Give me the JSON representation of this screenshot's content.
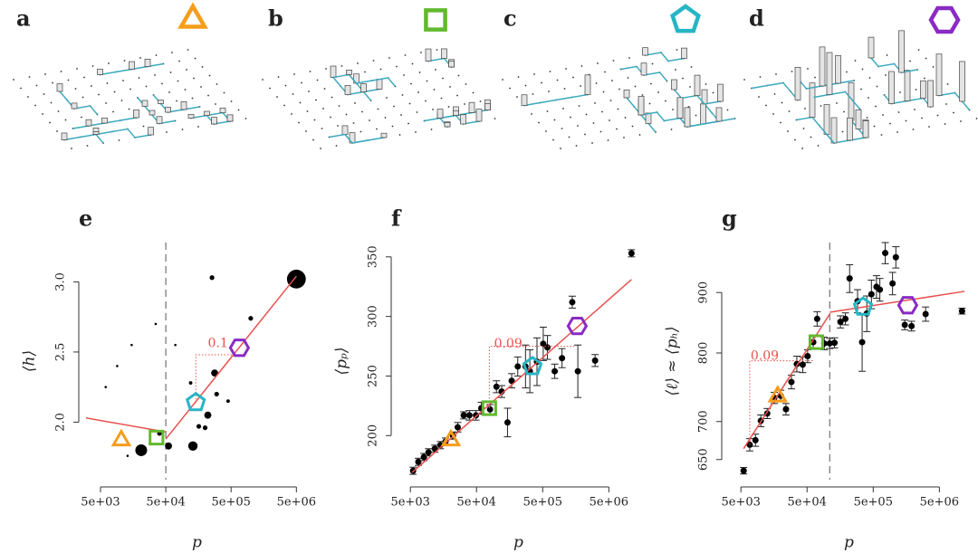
{
  "panels": [
    {
      "label": "a",
      "shape": "triangle",
      "color": "#f59d1c"
    },
    {
      "label": "b",
      "shape": "square",
      "color": "#62b92e"
    },
    {
      "label": "c",
      "shape": "pentagon",
      "color": "#27b5c4"
    },
    {
      "label": "d",
      "shape": "hexagon",
      "color": "#8a2bc4"
    }
  ],
  "chart_data": [
    {
      "type": "scatter",
      "title": "e",
      "xlabel": "p",
      "ylabel": "⟨h⟩",
      "xscale": "log",
      "yscale": "linear",
      "xlim": [
        3000,
        7500000
      ],
      "ylim": [
        1.59,
        3.28
      ],
      "xticks": [
        {
          "value": 5000,
          "label": "5e+03"
        },
        {
          "value": 50000,
          "label": "5e+04"
        },
        {
          "value": 500000,
          "label": "5e+05"
        },
        {
          "value": 5000000,
          "label": "5e+06"
        }
      ],
      "yticks": [
        {
          "value": 2,
          "label": "2.0"
        },
        {
          "value": 2.5,
          "label": "2.5"
        },
        {
          "value": 3,
          "label": "3.0"
        }
      ],
      "color": "#000000",
      "x": [
        21000,
        55000,
        130000,
        40000,
        255000,
        5000000,
        280000,
        220000,
        160000,
        200000,
        1000000,
        120000,
        70000,
        9000,
        15000,
        6000,
        35000,
        13000,
        300000,
        450000
      ],
      "y": [
        1.8,
        1.83,
        1.83,
        1.92,
        3.03,
        3.02,
        2.35,
        2.05,
        1.97,
        1.96,
        2.74,
        2.28,
        2.55,
        2.4,
        2.55,
        2.25,
        2.7,
        1.76,
        2.2,
        2.15
      ],
      "sizes": [
        5,
        3,
        4,
        2,
        2,
        8,
        3,
        3,
        2,
        2,
        2,
        1.5,
        1,
        1,
        1,
        1,
        1,
        1,
        2,
        1.5
      ],
      "fit": {
        "color": "#e8514f",
        "segments": [
          {
            "x": [
              3000,
              50000
            ],
            "y": [
              2.03,
              1.93
            ]
          },
          {
            "x": [
              50000,
              5000000
            ],
            "y": [
              1.88,
              3.04
            ]
          }
        ]
      },
      "vline": 50000,
      "annotation": {
        "text": "0.1",
        "x": 220000,
        "y": 2.56,
        "bracket": {
          "x": [
            144000,
            670000
          ],
          "y": [
            2.14,
            2.48
          ]
        }
      },
      "markers": {
        "x": [
          10400,
          36000,
          144000,
          670000
        ],
        "y": [
          1.87,
          1.89,
          2.14,
          2.53
        ]
      }
    },
    {
      "type": "scatter",
      "title": "f",
      "xlabel": "p",
      "ylabel": "⟨pₚ⟩",
      "xscale": "log",
      "yscale": "linear",
      "xlim": [
        3300,
        14000000
      ],
      "ylim": [
        163,
        362
      ],
      "xticks": [
        {
          "value": 5000,
          "label": "5e+03"
        },
        {
          "value": 50000,
          "label": "5e+04"
        },
        {
          "value": 500000,
          "label": "5e+05"
        },
        {
          "value": 5000000,
          "label": "5e+06"
        }
      ],
      "yticks": [
        200,
        250,
        300,
        350
      ],
      "color": "#000000",
      "x": [
        5500,
        6600,
        8000,
        9400,
        11700,
        14200,
        17000,
        22000,
        26000,
        32000,
        39000,
        49000,
        59000,
        80000,
        100000,
        120000,
        147000,
        170000,
        210000,
        275000,
        320000,
        410000,
        510000,
        590000,
        760000,
        980000,
        1400000,
        1700000,
        3100000,
        11000000
      ],
      "y": [
        170.5,
        178,
        182,
        186,
        189,
        192,
        195,
        200,
        207,
        217,
        217,
        217,
        223,
        222,
        241,
        237,
        211,
        246,
        258,
        258,
        254,
        262,
        277,
        274,
        254,
        265,
        312,
        254,
        263,
        353
      ],
      "errors": [
        3,
        3,
        3,
        3,
        3,
        3,
        3,
        3,
        4,
        3,
        4,
        4,
        5,
        4,
        5,
        5,
        12,
        6,
        8,
        18,
        18,
        20,
        14,
        10,
        6,
        8,
        5,
        22,
        5,
        3
      ],
      "fit": {
        "color": "#e8514f",
        "segments": [
          {
            "x": [
              5300,
              11000000
            ],
            "y": [
              169,
              331
            ]
          }
        ]
      },
      "annotation": {
        "text": "0.09",
        "x": 92000,
        "y": 277,
        "bracket": {
          "x": [
            78000,
            1500000
          ],
          "y": [
            223,
            275
          ]
        }
      },
      "markers": {
        "x": [
          20500,
          78000,
          350000,
          1660000
        ],
        "y": [
          196,
          223,
          258,
          292
        ]
      }
    },
    {
      "type": "scatter",
      "title": "g",
      "xlabel": "p",
      "ylabel": "⟨ℓ⟩ ≈ ⟨pₕ⟩",
      "xscale": "log",
      "yscale": "log",
      "xlim": [
        3300,
        14000000
      ],
      "ylim": [
        625,
        992
      ],
      "xticks": [
        {
          "value": 5000,
          "label": "5e+03"
        },
        {
          "value": 50000,
          "label": "5e+04"
        },
        {
          "value": 500000,
          "label": "5e+05"
        },
        {
          "value": 5000000,
          "label": "5e+06"
        }
      ],
      "yticks": [
        650,
        700,
        800,
        900
      ],
      "color": "#000000",
      "x": [
        5500,
        6800,
        8300,
        10000,
        12500,
        16000,
        20000,
        24000,
        29000,
        35000,
        43000,
        51000,
        62000,
        71000,
        91000,
        110000,
        130000,
        160000,
        190000,
        220000,
        290000,
        340000,
        400000,
        470000,
        560000,
        630000,
        760000,
        980000,
        1100000,
        1500000,
        1900000,
        3100000,
        11000000
      ],
      "y": [
        636,
        669,
        675,
        701,
        711,
        733,
        736,
        717,
        756,
        783,
        782,
        795,
        817,
        855,
        815,
        815,
        816,
        850,
        855,
        925,
        885,
        817,
        864,
        897,
        910,
        905,
        972,
        916,
        964,
        845,
        843,
        863,
        868
      ],
      "errors": [
        4,
        8,
        8,
        8,
        7,
        8,
        8,
        8,
        10,
        12,
        12,
        10,
        10,
        12,
        10,
        8,
        8,
        10,
        10,
        25,
        20,
        45,
        30,
        25,
        20,
        20,
        20,
        20,
        20,
        8,
        8,
        12,
        5
      ],
      "fit": {
        "color": "#e8514f",
        "segments": [
          {
            "x": [
              5500,
              110000
            ],
            "y": [
              664,
              863
            ]
          },
          {
            "x": [
              110000,
              12000000
            ],
            "y": [
              866,
              902
            ]
          }
        ]
      },
      "vline": 110000,
      "annotation": {
        "text": "0.09",
        "x": 7000,
        "y": 795,
        "bracket": {
          "x": [
            6800,
            62000
          ],
          "y": [
            669,
            788
          ]
        }
      },
      "markers": {
        "x": [
          18000,
          69000,
          350000,
          1660000
        ],
        "y": [
          735,
          817,
          875,
          878
        ]
      }
    }
  ]
}
